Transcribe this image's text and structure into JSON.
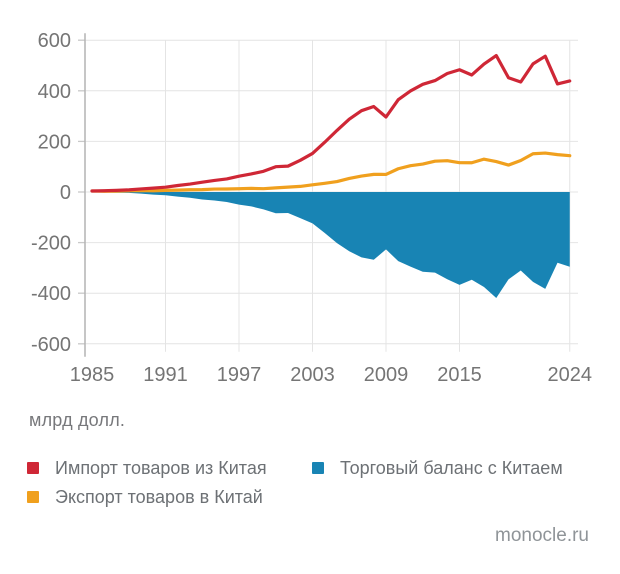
{
  "units_note": "млрд долл.",
  "footer": {
    "source": "monocle.ru"
  },
  "chart_data": {
    "type": "line",
    "title": "",
    "xlabel": "",
    "ylabel": "млрд долл.",
    "xlim": [
      1985,
      2024
    ],
    "ylim": [
      -600,
      600
    ],
    "grid": true,
    "legend_position": "bottom",
    "x_ticks": [
      1985,
      1991,
      1997,
      2003,
      2009,
      2015,
      2024
    ],
    "y_ticks": [
      600,
      400,
      200,
      0,
      -200,
      -400,
      -600
    ],
    "x": [
      1985,
      1986,
      1987,
      1988,
      1989,
      1990,
      1991,
      1992,
      1993,
      1994,
      1995,
      1996,
      1997,
      1998,
      1999,
      2000,
      2001,
      2002,
      2003,
      2004,
      2005,
      2006,
      2007,
      2008,
      2009,
      2010,
      2011,
      2012,
      2013,
      2014,
      2015,
      2016,
      2017,
      2018,
      2019,
      2020,
      2021,
      2022,
      2023,
      2024
    ],
    "series": [
      {
        "id": "import",
        "name": "Импорт товаров из Китая",
        "type": "line",
        "color": "#cf2736",
        "values": [
          3.9,
          4.8,
          6.3,
          8.5,
          12.0,
          15.2,
          19.0,
          25.7,
          31.5,
          38.8,
          45.6,
          51.5,
          62.6,
          71.2,
          81.8,
          100.0,
          102.3,
          125.2,
          152.4,
          196.7,
          243.5,
          287.8,
          321.4,
          337.8,
          296.4,
          365.0,
          399.4,
          425.6,
          440.4,
          468.5,
          483.2,
          462.5,
          505.5,
          539.5,
          451.7,
          434.8,
          506.4,
          536.8,
          427.2,
          438.9
        ]
      },
      {
        "id": "export",
        "name": "Экспорт товаров в Китай",
        "type": "line",
        "color": "#f0a01e",
        "values": [
          3.9,
          3.1,
          3.5,
          5.0,
          5.8,
          4.8,
          6.3,
          7.4,
          8.8,
          9.3,
          11.7,
          12.0,
          12.9,
          14.2,
          13.1,
          16.2,
          19.2,
          22.1,
          28.4,
          34.4,
          41.2,
          53.7,
          62.9,
          69.7,
          69.5,
          91.9,
          104.1,
          110.5,
          121.7,
          123.7,
          115.9,
          115.5,
          129.9,
          120.3,
          106.4,
          124.6,
          151.1,
          153.8,
          147.8,
          143.5
        ]
      },
      {
        "id": "balance",
        "name": "Торговый баланс с Китаем",
        "type": "area",
        "color": "#1884b4",
        "values": [
          -0.1,
          -1.7,
          -2.8,
          -3.5,
          -6.2,
          -10.4,
          -12.7,
          -18.3,
          -22.8,
          -29.5,
          -33.8,
          -39.5,
          -49.7,
          -56.9,
          -68.7,
          -83.8,
          -83.1,
          -103.1,
          -124.1,
          -162.3,
          -202.3,
          -234.1,
          -258.5,
          -268.0,
          -226.9,
          -273.1,
          -295.2,
          -315.1,
          -318.7,
          -344.8,
          -367.3,
          -347.0,
          -375.6,
          -419.2,
          -345.2,
          -310.3,
          -355.3,
          -382.9,
          -279.4,
          -295.4
        ]
      }
    ],
    "colors": {
      "grid": "#e4e4e4",
      "axis": "#b4b4b4",
      "tick": "#c9c9c9",
      "tick_text": "#757575"
    }
  }
}
